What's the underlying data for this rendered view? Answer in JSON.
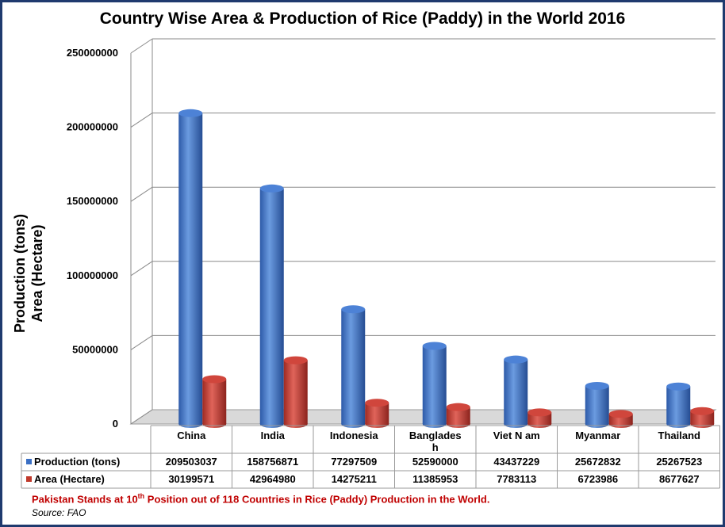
{
  "chart_data": {
    "type": "bar",
    "title": "Country Wise Area & Production of Rice (Paddy) in the World 2016",
    "ylabel_lines": [
      "Production (tons)",
      "Area (Hectare)"
    ],
    "ylim": [
      0,
      250000000
    ],
    "y_ticks": [
      "0",
      "50000000",
      "100000000",
      "150000000",
      "200000000",
      "250000000"
    ],
    "categories": [
      "China",
      "India",
      "Indonesia",
      "Banglades h",
      "Viet N am",
      "Myanmar",
      "Thailand"
    ],
    "category_labels": [
      [
        "China"
      ],
      [
        "India"
      ],
      [
        "Indonesia"
      ],
      [
        "Banglades",
        "h"
      ],
      [
        "Viet N am"
      ],
      [
        "Myanmar"
      ],
      [
        "Thailand"
      ]
    ],
    "series": [
      {
        "name": "Production (tons)",
        "values": [
          209503037,
          158756871,
          77297509,
          52590000,
          43437229,
          25672832,
          25267523
        ],
        "color": "#3a6fc4"
      },
      {
        "name": "Area (Hectare)",
        "values": [
          30199571,
          42964980,
          14275211,
          11385953,
          7783113,
          6723986,
          8677627
        ],
        "color": "#c0392b"
      }
    ],
    "grid": true,
    "legend": "data-table"
  },
  "table_rows": [
    {
      "label": "Production (tons)",
      "cells": [
        "209503037",
        "158756871",
        "77297509",
        "52590000",
        "43437229",
        "25672832",
        "25267523"
      ]
    },
    {
      "label": "Area (Hectare)",
      "cells": [
        "30199571",
        "42964980",
        "14275211",
        "11385953",
        "7783113",
        "6723986",
        "8677627"
      ]
    }
  ],
  "note": {
    "prefix": "Pakistan Stands at 10",
    "sup": "th",
    "suffix": " Position out of 118 Countries in Rice (Paddy) Production in the World."
  },
  "source": "Source: FAO"
}
